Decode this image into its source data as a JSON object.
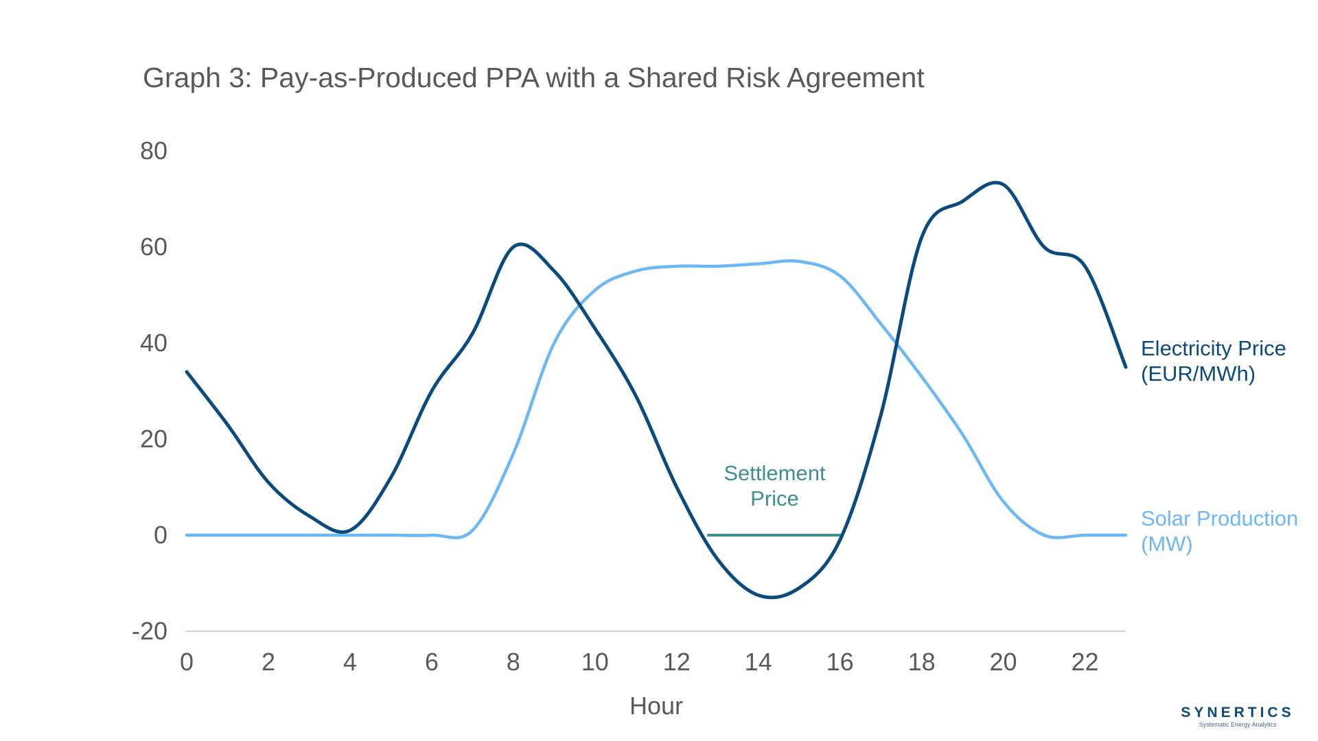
{
  "chart_data": {
    "type": "line",
    "title": "Graph 3: Pay-as-Produced PPA with a Shared Risk Agreement",
    "xlabel": "Hour",
    "ylabel": "",
    "xlim": [
      0,
      23
    ],
    "ylim": [
      -20,
      80
    ],
    "x_ticks": [
      0,
      2,
      4,
      6,
      8,
      10,
      12,
      14,
      16,
      18,
      20,
      22
    ],
    "y_ticks": [
      -20,
      0,
      20,
      40,
      60,
      80
    ],
    "grid": false,
    "legend": "inline labels at right end of each line",
    "series": [
      {
        "name_lines": [
          "Electricity Price",
          "(EUR/MWh)"
        ],
        "color": "#0b4a7d",
        "x": [
          0,
          1,
          2,
          3,
          4,
          5,
          6,
          7,
          8,
          9,
          10,
          11,
          12,
          13,
          14,
          15,
          16,
          17,
          18,
          19,
          20,
          21,
          22,
          23
        ],
        "y": [
          34,
          23,
          11,
          4,
          1,
          12,
          30,
          42,
          60,
          55,
          43,
          29,
          10,
          -5,
          -12.5,
          -11,
          -1,
          25,
          62,
          69.5,
          73,
          60,
          56,
          35
        ]
      },
      {
        "name_lines": [
          "Solar Production",
          "(MW)"
        ],
        "color": "#6cb7f5",
        "x": [
          0,
          1,
          2,
          3,
          4,
          5,
          6,
          7,
          8,
          9,
          10,
          11,
          12,
          13,
          14,
          15,
          16,
          17,
          18,
          19,
          20,
          21,
          22,
          23
        ],
        "y": [
          0,
          0,
          0,
          0,
          0,
          0,
          0,
          1,
          17,
          40,
          51,
          55,
          56,
          56,
          56.5,
          57,
          54,
          44,
          33,
          21,
          7,
          0,
          0,
          0
        ]
      }
    ],
    "annotations": [
      {
        "text_lines": [
          "Settlement",
          "Price"
        ],
        "color": "#3d8f94",
        "x_start": 12.75,
        "x_end": 16.05,
        "y": 0
      }
    ]
  },
  "brand": {
    "name": "SYNERTICS",
    "tagline": "Systematic Energy Analytics",
    "color": "#0b4a7d"
  }
}
